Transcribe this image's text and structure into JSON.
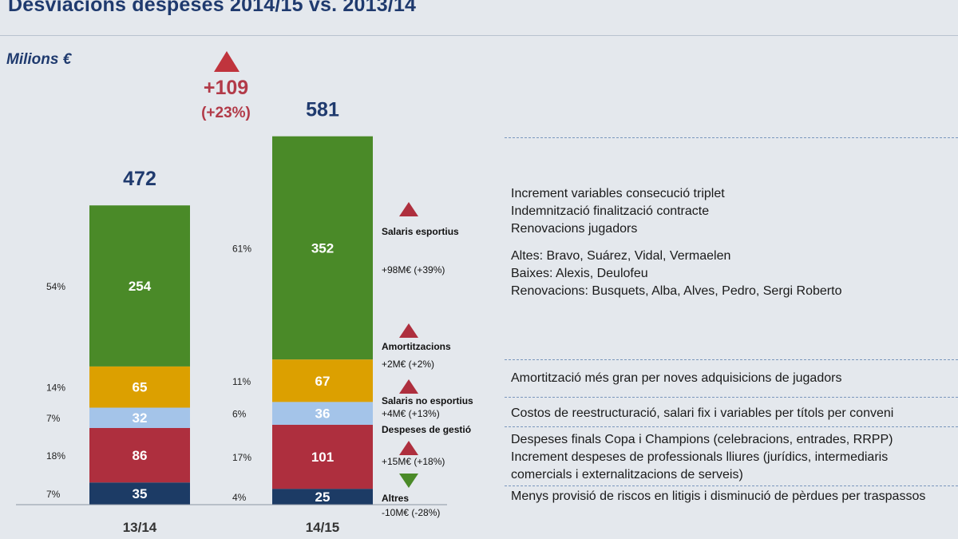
{
  "page": {
    "title": "Desviacions despeses 2014/15 vs. 2013/14",
    "unit": "Milions €",
    "delta_abs": "+109",
    "delta_pct": "(+23%)"
  },
  "chart_data": {
    "type": "bar",
    "stacked": true,
    "categories": [
      "13/14",
      "14/15"
    ],
    "totals": [
      472,
      581
    ],
    "series": [
      {
        "name": "Altres",
        "color": "#1c3b65",
        "values": [
          35,
          25
        ],
        "pcts": [
          "7%",
          "4%"
        ]
      },
      {
        "name": "Despeses de gestió",
        "color": "#ae2f3e",
        "values": [
          86,
          101
        ],
        "pcts": [
          "18%",
          "17%"
        ]
      },
      {
        "name": "Salaris no esportius",
        "color": "#a4c4e9",
        "values": [
          32,
          36
        ],
        "pcts": [
          "7%",
          "6%"
        ]
      },
      {
        "name": "Amortitzacions",
        "color": "#dca000",
        "values": [
          65,
          67
        ],
        "pcts": [
          "14%",
          "11%"
        ]
      },
      {
        "name": "Salaris esportius",
        "color": "#4a8a28",
        "values": [
          254,
          352
        ],
        "pcts": [
          "54%",
          "61%"
        ]
      }
    ],
    "annotations": [
      {
        "name": "Salaris esportius",
        "change": "+98M€ (+39%)",
        "direction": "up"
      },
      {
        "name": "Amortitzacions",
        "change": "+2M€ (+2%)",
        "direction": "up"
      },
      {
        "name": "Salaris no esportius",
        "change": "+4M€ (+13%)",
        "direction": "up"
      },
      {
        "name": "Despeses de gestió",
        "change": "+15M€ (+18%)",
        "direction": "up"
      },
      {
        "name": "Altres",
        "change": "-10M€ (-28%)",
        "direction": "down"
      }
    ]
  },
  "notes": {
    "salaris_esportius": [
      "Increment variables consecució triplet",
      "Indemnització finalització contracte",
      "Renovacions jugadors",
      "Altes: Bravo, Suárez, Vidal, Vermaelen",
      "Baixes: Alexis, Deulofeu",
      "Renovacions: Busquets, Alba, Alves, Pedro, Sergi Roberto"
    ],
    "amortitzacions": [
      "Amortització més gran per noves adquisicions de jugadors"
    ],
    "salaris_no_esportius": [
      "Costos de reestructuració, salari fix i variables per títols per conveni"
    ],
    "despeses_gestio": [
      "Despeses finals Copa i Champions (celebracions, entrades, RRPP)",
      "Increment despeses de professionals lliures (jurídics, intermediaris",
      "comercials i externalitzacions de serveis)"
    ],
    "altres": [
      "Menys provisió de riscos en litigis i disminució de pèrdues per traspassos"
    ]
  }
}
